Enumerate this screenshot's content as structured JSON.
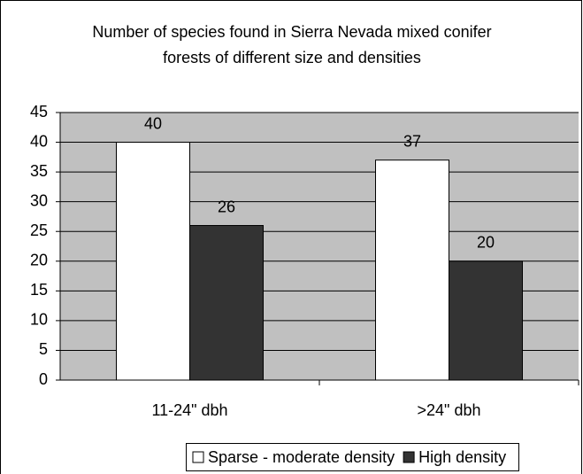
{
  "chart_data": {
    "type": "bar",
    "title": "Number of species found in Sierra Nevada mixed conifer forests of different size and densities",
    "categories": [
      "11-24\" dbh",
      ">24\" dbh"
    ],
    "series": [
      {
        "name": "Sparse - moderate density",
        "color": "#ffffff",
        "values": [
          40,
          37
        ]
      },
      {
        "name": "High density",
        "color": "#333333",
        "values": [
          26,
          20
        ]
      }
    ],
    "ylim": [
      0,
      45
    ],
    "yticks": [
      0,
      5,
      10,
      15,
      20,
      25,
      30,
      35,
      40,
      45
    ],
    "grid": true,
    "plot_background": "#c0c0c0",
    "legend": "bottom"
  }
}
